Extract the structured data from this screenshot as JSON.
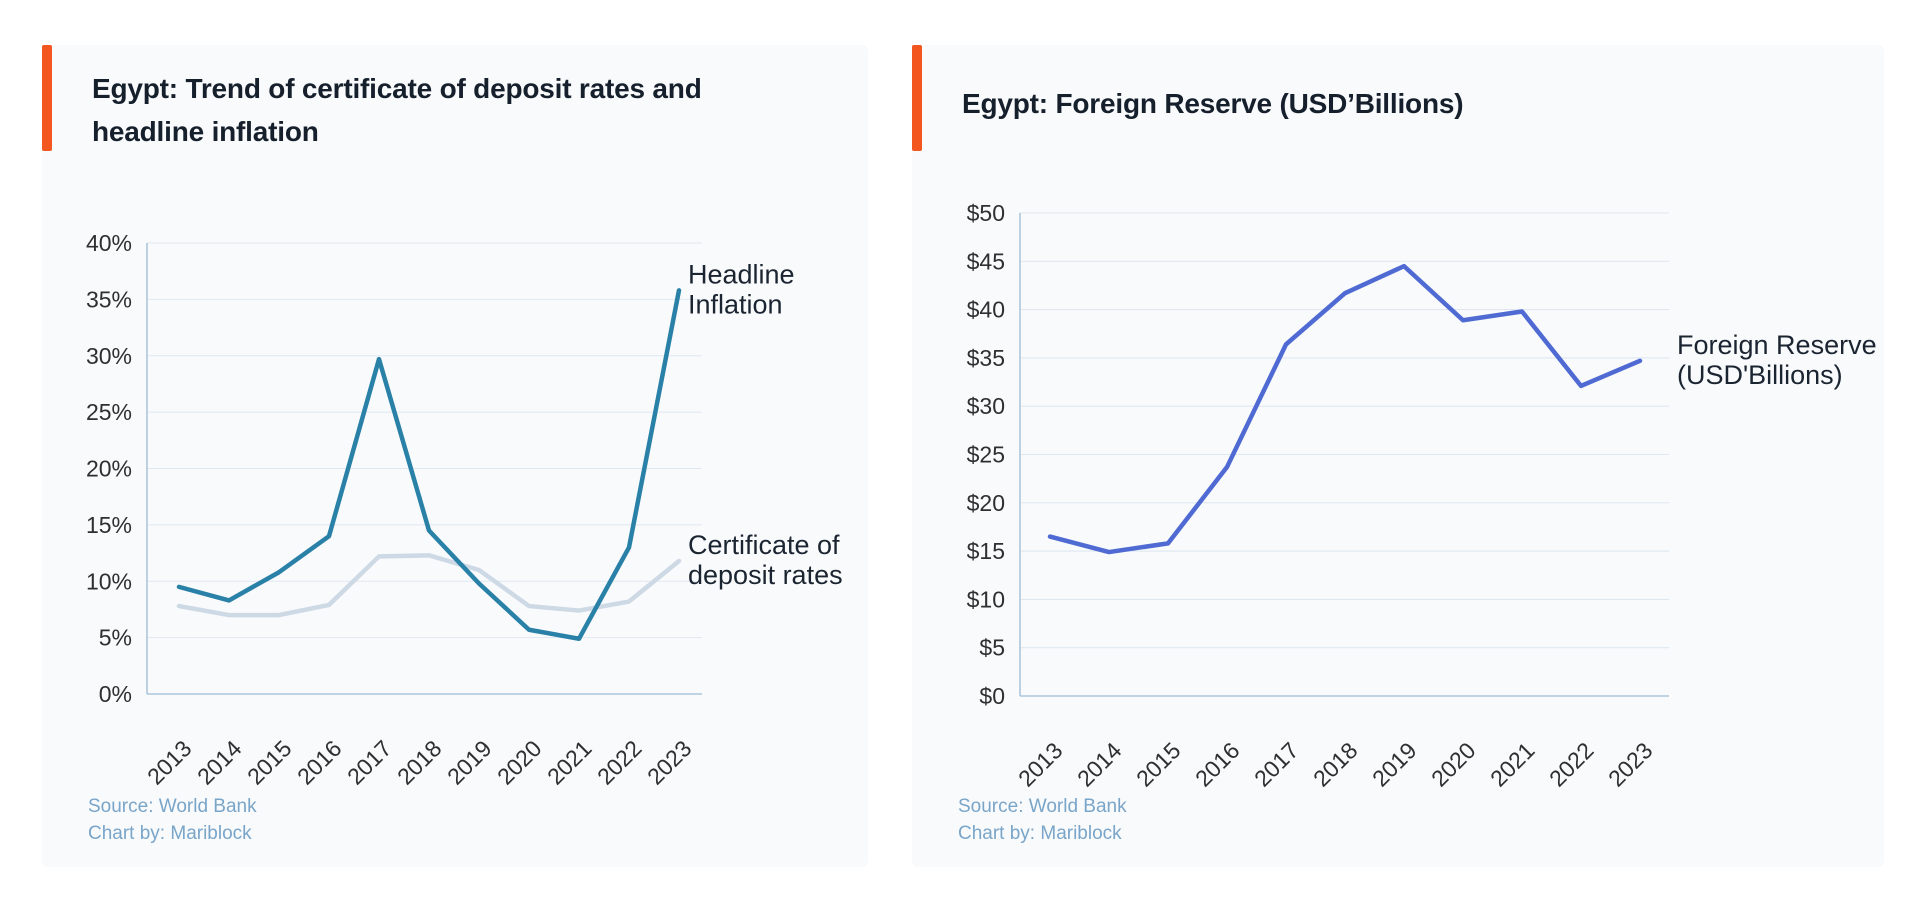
{
  "palette": {
    "accent_bar": "#f4561f",
    "panel_background": "#f9fafc",
    "grid_line": "#dfe8f1",
    "axis_line": "#adc6da",
    "tick_text": "#2f2f2f",
    "title_text": "#16202c",
    "series_label_text": "#1b2531",
    "source_text": "#79a5c9",
    "headline_inflation_line": "#2a81a8",
    "cd_rates_line": "#cdd9e5",
    "foreign_reserve_line": "#4f6bd3"
  },
  "charts": [
    {
      "title_lines": [
        "Egypt: Trend of certificate of deposit rates and",
        "headline inflation"
      ],
      "source_lines": [
        "Source: World Bank",
        "Chart by: Mariblock"
      ],
      "chart_data": {
        "type": "line",
        "categories": [
          "2013",
          "2014",
          "2015",
          "2016",
          "2017",
          "2018",
          "2019",
          "2020",
          "2021",
          "2022",
          "2023"
        ],
        "y_axis": {
          "min": 0,
          "max": 40,
          "step": 5,
          "format": "percent",
          "tick_labels": [
            "0%",
            "5%",
            "10%",
            "15%",
            "20%",
            "25%",
            "30%",
            "35%",
            "40%"
          ]
        },
        "grid": true,
        "legend_position": "end-of-line",
        "series": [
          {
            "name": "Headline Inflation",
            "label_lines": [
              "Headline",
              "Inflation"
            ],
            "color": "#2a81a8",
            "values": [
              9.5,
              8.3,
              10.8,
              14.0,
              29.7,
              14.5,
              9.8,
              5.7,
              4.9,
              13.0,
              35.8
            ]
          },
          {
            "name": "Certificate of deposit rates",
            "label_lines": [
              "Certificate of",
              "deposit rates"
            ],
            "color": "#cdd9e5",
            "values": [
              7.8,
              7.0,
              7.0,
              7.9,
              12.2,
              12.3,
              11.0,
              7.8,
              7.4,
              8.2,
              11.8
            ]
          }
        ]
      }
    },
    {
      "title_lines": [
        "Egypt: Foreign Reserve (USD’Billions)"
      ],
      "source_lines": [
        "Source: World Bank",
        "Chart by: Mariblock"
      ],
      "chart_data": {
        "type": "line",
        "categories": [
          "2013",
          "2014",
          "2015",
          "2016",
          "2017",
          "2018",
          "2019",
          "2020",
          "2021",
          "2022",
          "2023"
        ],
        "y_axis": {
          "min": 0,
          "max": 50,
          "step": 5,
          "format": "dollar",
          "tick_labels": [
            "$0",
            "$5",
            "$10",
            "$15",
            "$20",
            "$25",
            "$30",
            "$35",
            "$40",
            "$45",
            "$50"
          ]
        },
        "grid": true,
        "legend_position": "end-of-line",
        "series": [
          {
            "name": "Foreign Reserve (USD'Billions)",
            "label_lines": [
              "Foreign Reserve",
              "(USD'Billions)"
            ],
            "color": "#4f6bd3",
            "values": [
              16.5,
              14.9,
              15.8,
              23.7,
              36.4,
              41.7,
              44.5,
              38.9,
              39.8,
              32.1,
              34.7
            ]
          }
        ]
      }
    }
  ]
}
